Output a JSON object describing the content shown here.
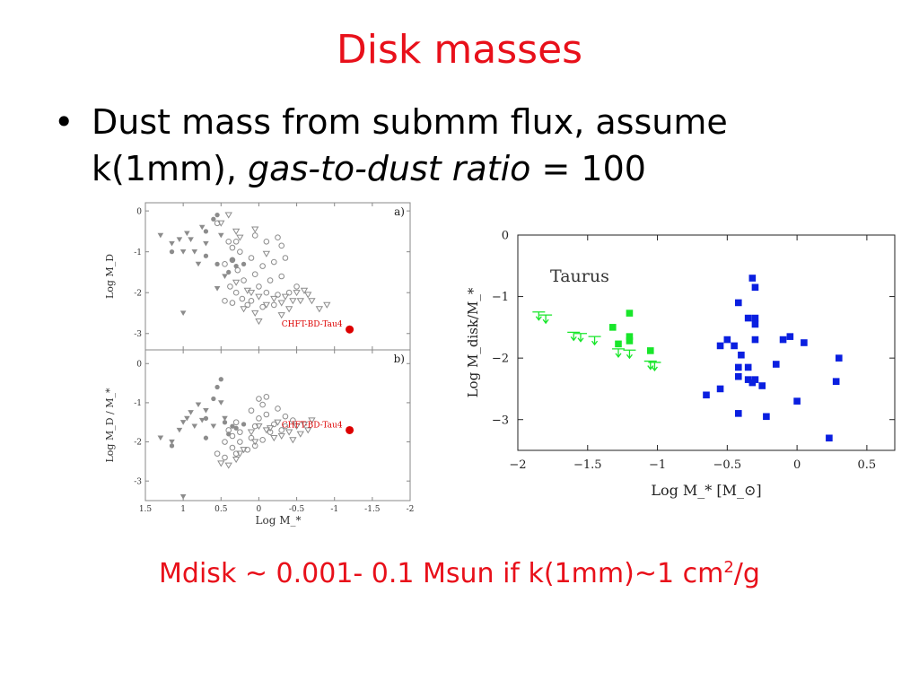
{
  "slide": {
    "title": "Disk masses",
    "bullet_mark": "•",
    "bullet_plain": "Dust mass from submm flux, assume k(1mm), ",
    "bullet_italic": "gas-to-dust ratio",
    "bullet_tail": " = 100",
    "note_main": "Mdisk ~ 0.001- 0.1 Msun  if k(1mm)~1 cm",
    "note_sup": "2",
    "note_end": "/g",
    "colors": {
      "title": "#e8101a",
      "note": "#e8101a",
      "text": "#000000"
    }
  },
  "chart_data": [
    {
      "type": "scatter",
      "panel": "a)",
      "ylabel": "Log M_D",
      "xlabel": "",
      "xlim": [
        1.5,
        -2
      ],
      "ylim": [
        -3.4,
        0.2
      ],
      "xticks": [
        "1.5",
        "1",
        "0.5",
        "0",
        "-0.5",
        "-1",
        "-1.5",
        "-2"
      ],
      "yticks": [
        "0",
        "-1",
        "-2",
        "-3"
      ],
      "annotation": "CHFT-BD-Tau4",
      "highlight_point": {
        "x": -1.2,
        "y": -2.9,
        "color": "#dd0000"
      },
      "series": [
        {
          "marker": "triangle-down-filled",
          "color": "#8c8c8c",
          "points": [
            [
              1.3,
              -0.6
            ],
            [
              1.15,
              -0.8
            ],
            [
              1.05,
              -0.7
            ],
            [
              1.0,
              -1.0
            ],
            [
              0.95,
              -0.55
            ],
            [
              0.9,
              -0.7
            ],
            [
              0.85,
              -1.0
            ],
            [
              0.8,
              -1.3
            ],
            [
              0.75,
              -0.4
            ],
            [
              0.7,
              -0.8
            ],
            [
              1.0,
              -2.5
            ],
            [
              0.5,
              -0.6
            ],
            [
              0.45,
              -1.6
            ],
            [
              0.55,
              -1.9
            ]
          ]
        },
        {
          "marker": "circle-filled",
          "color": "#8c8c8c",
          "points": [
            [
              1.15,
              -1.0
            ],
            [
              0.7,
              -0.5
            ],
            [
              0.6,
              -0.2
            ],
            [
              0.55,
              -0.1
            ],
            [
              0.7,
              -1.1
            ],
            [
              0.55,
              -1.3
            ],
            [
              0.35,
              -1.2
            ],
            [
              0.3,
              -1.35
            ],
            [
              0.4,
              -1.5
            ],
            [
              0.2,
              -1.3
            ]
          ]
        },
        {
          "marker": "circle-open",
          "color": "#8c8c8c",
          "points": [
            [
              0.55,
              -0.3
            ],
            [
              0.4,
              -0.75
            ],
            [
              0.35,
              -0.9
            ],
            [
              0.3,
              -0.75
            ],
            [
              0.25,
              -1.0
            ],
            [
              0.35,
              -1.2
            ],
            [
              0.45,
              -1.3
            ],
            [
              0.28,
              -1.45
            ],
            [
              0.2,
              -1.7
            ],
            [
              0.38,
              -1.85
            ],
            [
              0.3,
              -2.0
            ],
            [
              0.22,
              -2.15
            ],
            [
              0.15,
              -2.3
            ],
            [
              0.45,
              -2.2
            ],
            [
              0.35,
              -2.25
            ],
            [
              0.05,
              -0.6
            ],
            [
              -0.1,
              -0.75
            ],
            [
              -0.25,
              -0.65
            ],
            [
              -0.3,
              -0.85
            ],
            [
              0.1,
              -1.15
            ],
            [
              -0.05,
              -1.35
            ],
            [
              -0.2,
              -1.25
            ],
            [
              -0.35,
              -1.15
            ],
            [
              0.05,
              -1.55
            ],
            [
              -0.15,
              -1.7
            ],
            [
              -0.3,
              -1.6
            ],
            [
              0.0,
              -1.85
            ],
            [
              -0.1,
              -2.0
            ],
            [
              -0.25,
              -2.05
            ],
            [
              0.1,
              -2.2
            ],
            [
              -0.05,
              -2.35
            ],
            [
              -0.2,
              -2.3
            ],
            [
              -0.4,
              -2.0
            ],
            [
              -0.5,
              -1.85
            ]
          ]
        },
        {
          "marker": "triangle-down-open",
          "color": "#8c8c8c",
          "points": [
            [
              0.5,
              -0.3
            ],
            [
              0.4,
              -0.1
            ],
            [
              0.3,
              -0.5
            ],
            [
              0.25,
              -0.65
            ],
            [
              0.05,
              -0.45
            ],
            [
              -0.1,
              -1.05
            ],
            [
              0.3,
              -1.75
            ],
            [
              0.15,
              -1.95
            ],
            [
              0.2,
              -2.4
            ],
            [
              0.1,
              -2.0
            ],
            [
              0.0,
              -2.1
            ],
            [
              0.05,
              -2.5
            ],
            [
              -0.1,
              -2.3
            ],
            [
              -0.2,
              -2.15
            ],
            [
              -0.3,
              -2.25
            ],
            [
              -0.4,
              -2.4
            ],
            [
              -0.35,
              -2.1
            ],
            [
              -0.5,
              -2.0
            ],
            [
              -0.55,
              -2.2
            ],
            [
              -0.65,
              -2.05
            ],
            [
              -0.6,
              -1.95
            ],
            [
              -0.45,
              -2.2
            ],
            [
              -0.7,
              -2.2
            ],
            [
              -0.8,
              -2.4
            ],
            [
              -0.9,
              -2.3
            ],
            [
              0.0,
              -2.7
            ],
            [
              -0.3,
              -2.55
            ]
          ]
        }
      ]
    },
    {
      "type": "scatter",
      "panel": "b)",
      "ylabel": "Log M_D / M_*",
      "xlabel": "Log M_*",
      "xlim": [
        1.5,
        -2
      ],
      "ylim": [
        -3.5,
        0.35
      ],
      "xticks": [
        "1.5",
        "1",
        "0.5",
        "0",
        "-0.5",
        "-1",
        "-1.5",
        "-2"
      ],
      "yticks": [
        "0",
        "-1",
        "-2",
        "-3"
      ],
      "annotation": "CHFT-BD-Tau4",
      "highlight_point": {
        "x": -1.2,
        "y": -1.7,
        "color": "#dd0000"
      },
      "series": [
        {
          "marker": "triangle-down-filled",
          "color": "#8c8c8c",
          "points": [
            [
              1.3,
              -1.9
            ],
            [
              1.15,
              -2.0
            ],
            [
              1.05,
              -1.7
            ],
            [
              1.0,
              -1.5
            ],
            [
              0.95,
              -1.4
            ],
            [
              0.9,
              -1.25
            ],
            [
              0.85,
              -1.6
            ],
            [
              0.8,
              -1.05
            ],
            [
              0.75,
              -1.45
            ],
            [
              0.7,
              -1.2
            ],
            [
              1.0,
              -3.4
            ],
            [
              0.5,
              -1.0
            ],
            [
              0.45,
              -1.4
            ],
            [
              0.6,
              -1.6
            ]
          ]
        },
        {
          "marker": "circle-filled",
          "color": "#8c8c8c",
          "points": [
            [
              1.15,
              -2.1
            ],
            [
              0.7,
              -1.4
            ],
            [
              0.6,
              -0.9
            ],
            [
              0.55,
              -0.6
            ],
            [
              0.7,
              -1.9
            ],
            [
              0.45,
              -1.5
            ],
            [
              0.35,
              -1.6
            ],
            [
              0.3,
              -1.65
            ],
            [
              0.4,
              -1.8
            ],
            [
              0.2,
              -1.55
            ],
            [
              0.5,
              -0.4
            ]
          ]
        },
        {
          "marker": "circle-open",
          "color": "#8c8c8c",
          "points": [
            [
              0.55,
              -2.3
            ],
            [
              0.45,
              -2.0
            ],
            [
              0.35,
              -2.15
            ],
            [
              0.3,
              -2.3
            ],
            [
              0.25,
              -2.0
            ],
            [
              0.35,
              -1.85
            ],
            [
              0.4,
              -1.7
            ],
            [
              0.3,
              -1.5
            ],
            [
              0.25,
              -1.75
            ],
            [
              0.45,
              -2.4
            ],
            [
              0.1,
              -1.9
            ],
            [
              0.05,
              -1.6
            ],
            [
              0.0,
              -1.4
            ],
            [
              -0.1,
              -1.3
            ],
            [
              -0.2,
              -1.55
            ],
            [
              -0.3,
              -1.7
            ],
            [
              -0.35,
              -1.35
            ],
            [
              -0.15,
              -1.75
            ],
            [
              0.05,
              -2.1
            ],
            [
              -0.05,
              -1.95
            ],
            [
              0.15,
              -2.2
            ],
            [
              0.0,
              -0.9
            ],
            [
              -0.1,
              -0.85
            ],
            [
              -0.25,
              -1.15
            ],
            [
              -0.35,
              -1.6
            ],
            [
              -0.45,
              -1.45
            ],
            [
              0.1,
              -1.2
            ],
            [
              -0.05,
              -1.05
            ]
          ]
        },
        {
          "marker": "triangle-down-open",
          "color": "#8c8c8c",
          "points": [
            [
              0.5,
              -2.55
            ],
            [
              0.4,
              -2.6
            ],
            [
              0.3,
              -2.45
            ],
            [
              0.2,
              -2.2
            ],
            [
              0.1,
              -1.75
            ],
            [
              0.0,
              -1.6
            ],
            [
              -0.1,
              -1.7
            ],
            [
              -0.2,
              -1.9
            ],
            [
              -0.3,
              -1.85
            ],
            [
              -0.4,
              -1.75
            ],
            [
              -0.5,
              -1.6
            ],
            [
              -0.55,
              -1.8
            ],
            [
              -0.6,
              -1.55
            ],
            [
              -0.65,
              -1.7
            ],
            [
              -0.7,
              -1.45
            ],
            [
              0.05,
              -2.0
            ],
            [
              -0.15,
              -1.65
            ],
            [
              -0.25,
              -1.5
            ],
            [
              -0.45,
              -1.95
            ],
            [
              0.25,
              -2.3
            ]
          ]
        }
      ]
    },
    {
      "type": "scatter",
      "label": "Taurus",
      "xlabel": "Log M_* [M_⊙]",
      "ylabel": "Log M_disk/M_*",
      "xlim": [
        -2,
        0.7
      ],
      "ylim": [
        -3.5,
        0
      ],
      "xticks": [
        "−2",
        "−1.5",
        "−1",
        "−0.5",
        "0",
        "0.5"
      ],
      "yticks": [
        "0",
        "−1",
        "−2",
        "−3"
      ],
      "grid": false,
      "series": [
        {
          "marker": "square",
          "color": "#0a1fe0",
          "points": [
            [
              -0.32,
              -0.7
            ],
            [
              -0.3,
              -0.85
            ],
            [
              -0.42,
              -1.1
            ],
            [
              -0.35,
              -1.35
            ],
            [
              -0.3,
              -1.35
            ],
            [
              -0.3,
              -1.45
            ],
            [
              -0.5,
              -1.7
            ],
            [
              -0.55,
              -1.8
            ],
            [
              -0.45,
              -1.8
            ],
            [
              -0.3,
              -1.7
            ],
            [
              -0.4,
              -1.95
            ],
            [
              -0.05,
              -1.65
            ],
            [
              -0.1,
              -1.7
            ],
            [
              0.05,
              -1.75
            ],
            [
              -0.15,
              -2.1
            ],
            [
              -0.42,
              -2.15
            ],
            [
              -0.35,
              -2.15
            ],
            [
              -0.42,
              -2.3
            ],
            [
              -0.35,
              -2.35
            ],
            [
              -0.3,
              -2.35
            ],
            [
              -0.32,
              -2.4
            ],
            [
              -0.25,
              -2.45
            ],
            [
              -0.55,
              -2.5
            ],
            [
              -0.65,
              -2.6
            ],
            [
              0.0,
              -2.7
            ],
            [
              -0.42,
              -2.9
            ],
            [
              -0.22,
              -2.95
            ],
            [
              0.3,
              -2.0
            ],
            [
              0.28,
              -2.38
            ],
            [
              0.23,
              -3.3
            ]
          ]
        },
        {
          "marker": "square",
          "color": "#18e62a",
          "points": [
            [
              -1.2,
              -1.27
            ],
            [
              -1.32,
              -1.5
            ],
            [
              -1.2,
              -1.65
            ],
            [
              -1.2,
              -1.72
            ],
            [
              -1.28,
              -1.77
            ],
            [
              -1.05,
              -1.88
            ]
          ]
        },
        {
          "marker": "upper-limit-arrow",
          "color": "#18e62a",
          "points": [
            [
              -1.85,
              -1.25
            ],
            [
              -1.8,
              -1.3
            ],
            [
              -1.6,
              -1.58
            ],
            [
              -1.55,
              -1.6
            ],
            [
              -1.45,
              -1.65
            ],
            [
              -1.28,
              -1.85
            ],
            [
              -1.2,
              -1.87
            ],
            [
              -1.05,
              -2.05
            ],
            [
              -1.02,
              -2.07
            ]
          ]
        }
      ]
    }
  ]
}
